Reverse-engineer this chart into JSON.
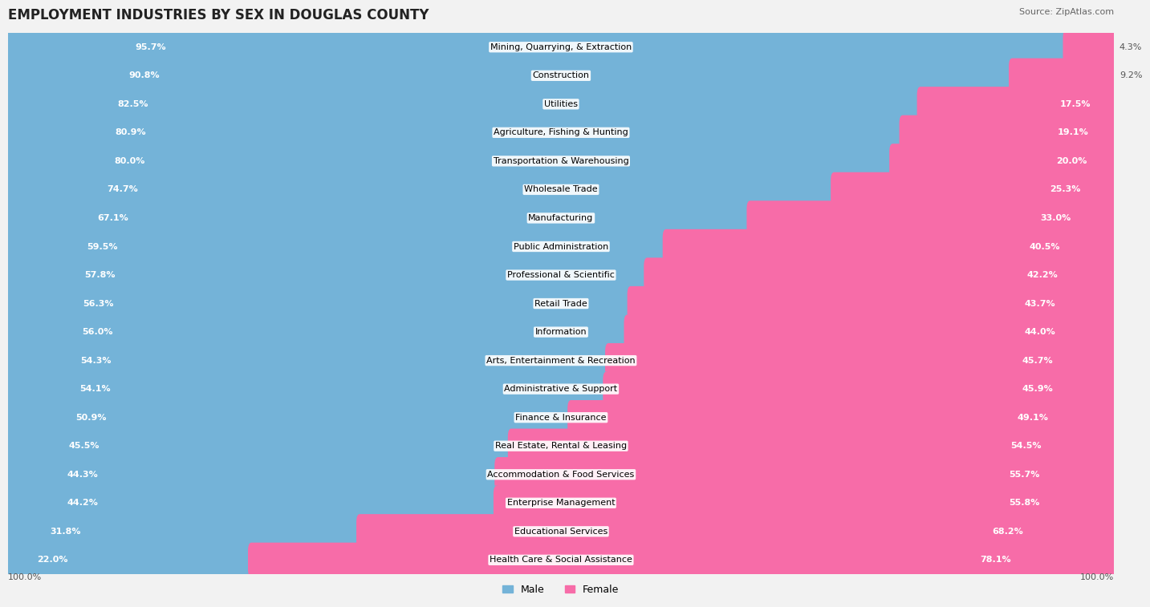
{
  "title": "EMPLOYMENT INDUSTRIES BY SEX IN DOUGLAS COUNTY",
  "source": "Source: ZipAtlas.com",
  "industries": [
    {
      "name": "Mining, Quarrying, & Extraction",
      "male": 95.7,
      "female": 4.3
    },
    {
      "name": "Construction",
      "male": 90.8,
      "female": 9.2
    },
    {
      "name": "Utilities",
      "male": 82.5,
      "female": 17.5
    },
    {
      "name": "Agriculture, Fishing & Hunting",
      "male": 80.9,
      "female": 19.1
    },
    {
      "name": "Transportation & Warehousing",
      "male": 80.0,
      "female": 20.0
    },
    {
      "name": "Wholesale Trade",
      "male": 74.7,
      "female": 25.3
    },
    {
      "name": "Manufacturing",
      "male": 67.1,
      "female": 33.0
    },
    {
      "name": "Public Administration",
      "male": 59.5,
      "female": 40.5
    },
    {
      "name": "Professional & Scientific",
      "male": 57.8,
      "female": 42.2
    },
    {
      "name": "Retail Trade",
      "male": 56.3,
      "female": 43.7
    },
    {
      "name": "Information",
      "male": 56.0,
      "female": 44.0
    },
    {
      "name": "Arts, Entertainment & Recreation",
      "male": 54.3,
      "female": 45.7
    },
    {
      "name": "Administrative & Support",
      "male": 54.1,
      "female": 45.9
    },
    {
      "name": "Finance & Insurance",
      "male": 50.9,
      "female": 49.1
    },
    {
      "name": "Real Estate, Rental & Leasing",
      "male": 45.5,
      "female": 54.5
    },
    {
      "name": "Accommodation & Food Services",
      "male": 44.3,
      "female": 55.7
    },
    {
      "name": "Enterprise Management",
      "male": 44.2,
      "female": 55.8
    },
    {
      "name": "Educational Services",
      "male": 31.8,
      "female": 68.2
    },
    {
      "name": "Health Care & Social Assistance",
      "male": 22.0,
      "female": 78.1
    }
  ],
  "male_color": "#74b3d8",
  "female_color": "#f76ca8",
  "male_label": "Male",
  "female_label": "Female",
  "bg_color": "#f2f2f2",
  "row_color_even": "#ffffff",
  "row_color_odd": "#ebebeb",
  "title_fontsize": 12,
  "source_fontsize": 8,
  "label_fontsize": 8,
  "bar_label_fontsize": 8,
  "legend_fontsize": 9
}
